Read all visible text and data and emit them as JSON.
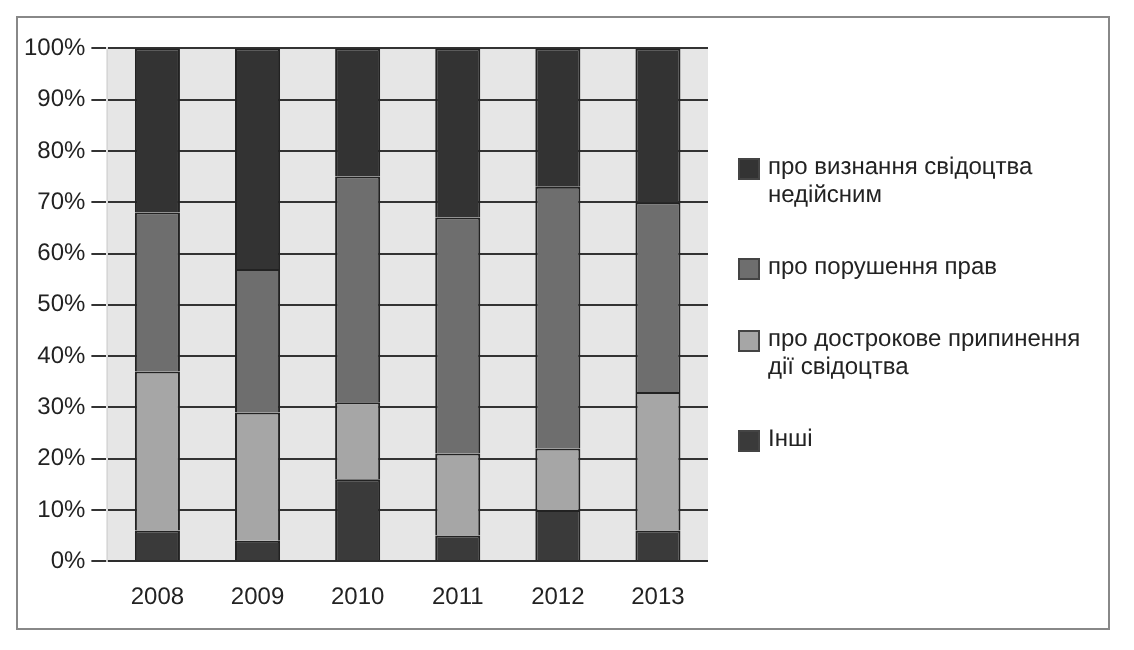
{
  "chart_data": {
    "type": "bar",
    "stacked": true,
    "categories": [
      "2008",
      "2009",
      "2010",
      "2011",
      "2012",
      "2013"
    ],
    "series": [
      {
        "name": "Інші",
        "color": "#3a3a3a",
        "values": [
          6,
          4,
          16,
          5,
          10,
          6
        ]
      },
      {
        "name": "про дострокове припинення дії свідоцтва",
        "color": "#a6a6a6",
        "values": [
          31,
          25,
          15,
          16,
          12,
          27
        ]
      },
      {
        "name": "про порушення прав",
        "color": "#6e6e6e",
        "values": [
          31,
          28,
          44,
          46,
          51,
          37
        ]
      },
      {
        "name": "про визнання свідоцтва недійсним",
        "color": "#333333",
        "values": [
          32,
          43,
          25,
          33,
          27,
          30
        ]
      }
    ],
    "ylim": [
      0,
      100
    ],
    "yticks": [
      {
        "value": 0,
        "label": "0%"
      },
      {
        "value": 10,
        "label": "10%"
      },
      {
        "value": 20,
        "label": "20%"
      },
      {
        "value": 30,
        "label": "30%"
      },
      {
        "value": 40,
        "label": "40%"
      },
      {
        "value": 50,
        "label": "50%"
      },
      {
        "value": 60,
        "label": "60%"
      },
      {
        "value": 70,
        "label": "70%"
      },
      {
        "value": 80,
        "label": "80%"
      },
      {
        "value": 90,
        "label": "90%"
      },
      {
        "value": 100,
        "label": "100%"
      }
    ],
    "grid": "y",
    "legend": "right"
  }
}
